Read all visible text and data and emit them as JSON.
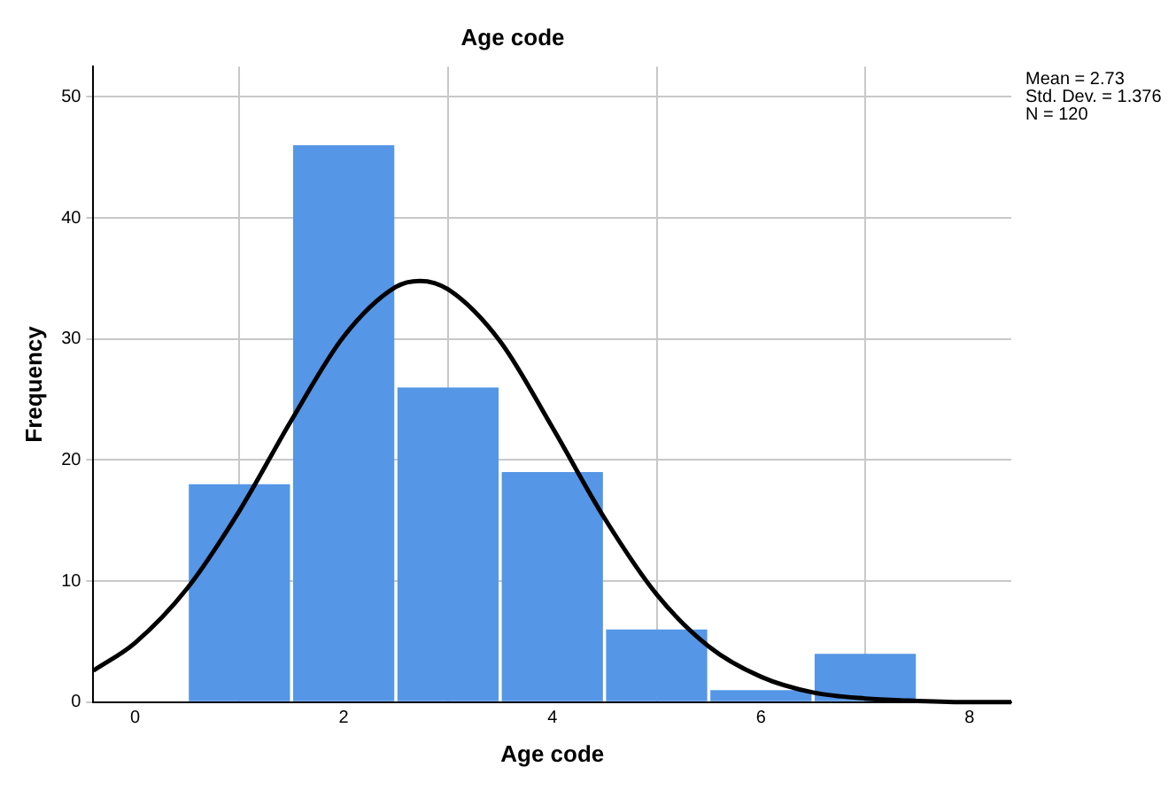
{
  "chart_data": {
    "type": "histogram",
    "title": "Age code",
    "xlabel": "Age code",
    "ylabel": "Frequency",
    "bins": [
      0.5,
      1.5,
      2.5,
      3.5,
      4.5,
      5.5,
      6.5,
      7.5
    ],
    "values": [
      18,
      46,
      26,
      19,
      6,
      1,
      4
    ],
    "color": "#5596e6",
    "series": [
      {
        "type": "line",
        "color": "#000000",
        "x": [
          -0.4,
          0,
          0.5,
          1,
          1.5,
          2,
          2.5,
          2.73,
          3,
          3.5,
          4,
          4.5,
          5,
          5.5,
          6,
          6.5,
          7,
          7.5,
          8,
          8.4
        ],
        "values": [
          2.6,
          4.9,
          9.4,
          15.8,
          23.3,
          30.2,
          34.3,
          34.8,
          34.1,
          29.8,
          22.7,
          15.2,
          8.9,
          4.6,
          2.1,
          0.8,
          0.3,
          0.1,
          0,
          0
        ]
      }
    ],
    "xlim": [
      -0.4,
      8.4
    ],
    "xticks": [
      0,
      2,
      4,
      6,
      8
    ],
    "ylim": [
      0,
      52.5
    ],
    "yticks": [
      0,
      10,
      20,
      30,
      40,
      50
    ],
    "grid": true,
    "legend": false,
    "marker": "none",
    "line_style": "solid",
    "annotations": [
      "Mean = 2.73",
      "Std. Dev. = 1.376",
      "N = 120"
    ]
  }
}
